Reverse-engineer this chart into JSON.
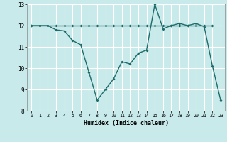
{
  "title": "",
  "xlabel": "Humidex (Indice chaleur)",
  "xlim": [
    -0.5,
    23.5
  ],
  "ylim": [
    8,
    13
  ],
  "yticks": [
    8,
    9,
    10,
    11,
    12,
    13
  ],
  "xticks": [
    0,
    1,
    2,
    3,
    4,
    5,
    6,
    7,
    8,
    9,
    10,
    11,
    12,
    13,
    14,
    15,
    16,
    17,
    18,
    19,
    20,
    21,
    22,
    23
  ],
  "bg_color": "#c8eaea",
  "line_color": "#1e6b6b",
  "grid_color": "#ffffff",
  "line1_x": [
    0,
    1,
    2,
    3,
    4,
    5,
    6,
    7,
    8,
    9,
    10,
    11,
    12,
    13,
    14,
    15,
    16,
    17,
    18,
    19,
    20,
    21,
    22
  ],
  "line1_y": [
    12,
    12,
    12,
    12,
    12,
    12,
    12,
    12,
    12,
    12,
    12,
    12,
    12,
    12,
    12,
    12,
    12,
    12,
    12,
    12,
    12,
    12,
    12
  ],
  "line2_x": [
    0,
    1,
    2,
    3,
    4,
    5,
    6,
    7,
    8,
    9,
    10,
    11,
    12,
    13,
    14,
    15,
    16,
    17,
    18,
    19,
    20,
    21,
    22,
    23
  ],
  "line2_y": [
    12,
    12,
    12,
    11.8,
    11.75,
    11.3,
    11.1,
    9.8,
    8.5,
    9.0,
    9.5,
    10.3,
    10.2,
    10.7,
    10.85,
    13.0,
    11.85,
    12.0,
    12.1,
    12.0,
    12.1,
    11.95,
    10.1,
    8.5
  ]
}
